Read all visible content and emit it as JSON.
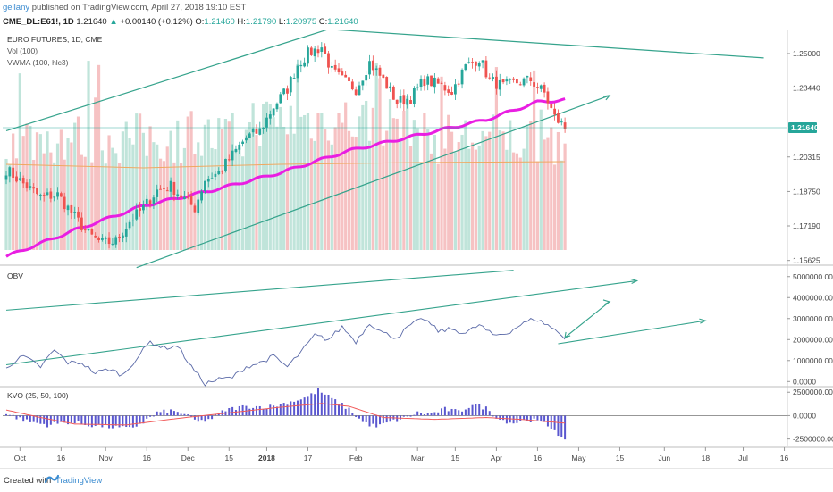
{
  "header": {
    "author": "gellany",
    "published": "published on TradingView.com, April 27, 2018 19:10 EST",
    "symbol": "CME_DL:E61!, 1D",
    "last": "1.21640",
    "arrow": "▲",
    "change": "+0.00140 (+0.12%)",
    "open_label": "O:",
    "open": "1.21460",
    "high_label": "H:",
    "high": "1.21790",
    "low_label": "L:",
    "low": "1.20975",
    "close_label": "C:",
    "close": "1.21640"
  },
  "footer": {
    "created": "Created with",
    "brand": "TradingView"
  },
  "colors": {
    "up": "#26a69a",
    "down": "#ef5350",
    "vol_up": "#b5dfd3",
    "vol_down": "#f5b7b9",
    "vwma": "#e91ee2",
    "trend": "#35a38c",
    "obv": "#5b6aa8",
    "kvo_bar": "#5a57cf",
    "kvo_signal": "#f15a5a"
  },
  "chart_data": [
    {
      "type": "candlestick",
      "title": "EURO FUTURES, 1D, CME",
      "indicators": [
        "Vol (100)",
        "VWMA (100, hlc3)"
      ],
      "price_axis_ticks": [
        "1.25000",
        "1.23440",
        "1.20315",
        "1.18750",
        "1.17190",
        "1.15625"
      ],
      "last_price_label": "1.21640",
      "ylim": [
        1.1545,
        1.2605
      ],
      "x_tick_labels": [
        "Oct",
        "16",
        "Nov",
        "16",
        "Dec",
        "15",
        "2018",
        "17",
        "Feb",
        "Mar",
        "15",
        "Apr",
        "16",
        "May",
        "15",
        "Jun",
        "18",
        "Jul",
        "16"
      ],
      "approx_close_path": [
        [
          0,
          1.1975
        ],
        [
          5,
          1.191
        ],
        [
          10,
          1.185
        ],
        [
          15,
          1.186
        ],
        [
          20,
          1.176
        ],
        [
          24,
          1.168
        ],
        [
          28,
          1.164
        ],
        [
          32,
          1.165
        ],
        [
          36,
          1.174
        ],
        [
          40,
          1.18
        ],
        [
          44,
          1.188
        ],
        [
          48,
          1.19
        ],
        [
          52,
          1.184
        ],
        [
          55,
          1.18
        ],
        [
          58,
          1.193
        ],
        [
          62,
          1.196
        ],
        [
          66,
          1.204
        ],
        [
          70,
          1.212
        ],
        [
          74,
          1.215
        ],
        [
          78,
          1.226
        ],
        [
          82,
          1.234
        ],
        [
          85,
          1.245
        ],
        [
          88,
          1.25
        ],
        [
          92,
          1.253
        ],
        [
          95,
          1.242
        ],
        [
          98,
          1.238
        ],
        [
          102,
          1.234
        ],
        [
          106,
          1.246
        ],
        [
          110,
          1.238
        ],
        [
          114,
          1.228
        ],
        [
          118,
          1.23
        ],
        [
          122,
          1.238
        ],
        [
          126,
          1.236
        ],
        [
          130,
          1.233
        ],
        [
          134,
          1.244
        ],
        [
          138,
          1.248
        ],
        [
          141,
          1.238
        ],
        [
          145,
          1.235
        ],
        [
          149,
          1.237
        ],
        [
          153,
          1.238
        ],
        [
          157,
          1.232
        ],
        [
          160,
          1.221
        ],
        [
          163,
          1.2164
        ]
      ],
      "vwma": [
        [
          0,
          1.158
        ],
        [
          20,
          1.17
        ],
        [
          40,
          1.181
        ],
        [
          60,
          1.188
        ],
        [
          80,
          1.196
        ],
        [
          100,
          1.206
        ],
        [
          120,
          1.213
        ],
        [
          140,
          1.22
        ],
        [
          155,
          1.228
        ],
        [
          163,
          1.229
        ]
      ],
      "trendlines": [
        {
          "from": [
            0,
            1.215
          ],
          "to": [
            94,
            1.261
          ]
        },
        {
          "from": [
            94,
            1.261
          ],
          "to": [
            221,
            1.248
          ]
        },
        {
          "from": [
            38,
            1.153
          ],
          "to": [
            176,
            1.231
          ]
        }
      ]
    },
    {
      "type": "line",
      "title": "OBV",
      "axis_ticks": [
        "5000000.0000",
        "4000000.0000",
        "3000000.0000",
        "2000000.0000",
        "1000000.0000",
        "0.0000"
      ],
      "ylim": [
        -200000,
        5500000
      ],
      "approx_values": [
        [
          0,
          700000
        ],
        [
          5,
          1200000
        ],
        [
          10,
          700000
        ],
        [
          14,
          1500000
        ],
        [
          18,
          900000
        ],
        [
          22,
          900000
        ],
        [
          26,
          400000
        ],
        [
          30,
          600000
        ],
        [
          34,
          300000
        ],
        [
          38,
          1100000
        ],
        [
          42,
          1900000
        ],
        [
          46,
          1600000
        ],
        [
          50,
          1700000
        ],
        [
          54,
          700000
        ],
        [
          58,
          -100000
        ],
        [
          62,
          100000
        ],
        [
          66,
          200000
        ],
        [
          70,
          700000
        ],
        [
          74,
          900000
        ],
        [
          78,
          1200000
        ],
        [
          82,
          700000
        ],
        [
          86,
          1400000
        ],
        [
          90,
          2200000
        ],
        [
          94,
          2000000
        ],
        [
          98,
          2600000
        ],
        [
          102,
          1900000
        ],
        [
          106,
          2800000
        ],
        [
          110,
          2300000
        ],
        [
          114,
          2100000
        ],
        [
          118,
          2700000
        ],
        [
          122,
          3000000
        ],
        [
          126,
          2400000
        ],
        [
          130,
          2500000
        ],
        [
          134,
          2300000
        ],
        [
          138,
          2700000
        ],
        [
          142,
          2200000
        ],
        [
          146,
          2300000
        ],
        [
          150,
          2700000
        ],
        [
          154,
          3000000
        ],
        [
          158,
          2700000
        ],
        [
          163,
          2100000
        ]
      ],
      "trendlines": [
        {
          "from": [
            0,
            3400000
          ],
          "to": [
            148,
            5300000
          ]
        },
        {
          "from": [
            0,
            800000
          ],
          "to": [
            184,
            4800000
          ]
        },
        {
          "from": [
            161,
            1800000
          ],
          "to": [
            204,
            2900000
          ]
        },
        {
          "from": [
            163,
            2100000
          ],
          "to": [
            176,
            3800000
          ]
        }
      ]
    },
    {
      "type": "bar",
      "title": "KVO (25, 50, 100)",
      "axis_ticks": [
        "2500000.0000",
        "0.0000",
        "-2500000.0000"
      ],
      "ylim": [
        -3300000,
        3000000
      ],
      "approx_values": [
        [
          0,
          200000
        ],
        [
          6,
          -600000
        ],
        [
          12,
          -1000000
        ],
        [
          18,
          -700000
        ],
        [
          24,
          -1000000
        ],
        [
          30,
          -1200000
        ],
        [
          36,
          -1400000
        ],
        [
          40,
          -700000
        ],
        [
          44,
          300000
        ],
        [
          48,
          500000
        ],
        [
          52,
          200000
        ],
        [
          56,
          -700000
        ],
        [
          60,
          -300000
        ],
        [
          64,
          600000
        ],
        [
          68,
          900000
        ],
        [
          72,
          1000000
        ],
        [
          76,
          900000
        ],
        [
          80,
          1200000
        ],
        [
          84,
          1600000
        ],
        [
          88,
          2000000
        ],
        [
          91,
          2700000
        ],
        [
          95,
          1800000
        ],
        [
          100,
          700000
        ],
        [
          104,
          -700000
        ],
        [
          108,
          -1200000
        ],
        [
          112,
          -700000
        ],
        [
          116,
          -300000
        ],
        [
          120,
          300000
        ],
        [
          124,
          200000
        ],
        [
          128,
          700000
        ],
        [
          132,
          400000
        ],
        [
          136,
          1200000
        ],
        [
          140,
          800000
        ],
        [
          144,
          -400000
        ],
        [
          148,
          -800000
        ],
        [
          152,
          -400000
        ],
        [
          156,
          -700000
        ],
        [
          160,
          -1500000
        ],
        [
          163,
          -2800000
        ]
      ],
      "signal": [
        [
          0,
          600000
        ],
        [
          10,
          -200000
        ],
        [
          20,
          -900000
        ],
        [
          35,
          -1000000
        ],
        [
          50,
          -300000
        ],
        [
          65,
          300000
        ],
        [
          80,
          900000
        ],
        [
          92,
          1300000
        ],
        [
          100,
          1000000
        ],
        [
          110,
          -200000
        ],
        [
          125,
          -400000
        ],
        [
          140,
          -200000
        ],
        [
          150,
          -400000
        ],
        [
          163,
          -800000
        ]
      ]
    }
  ]
}
